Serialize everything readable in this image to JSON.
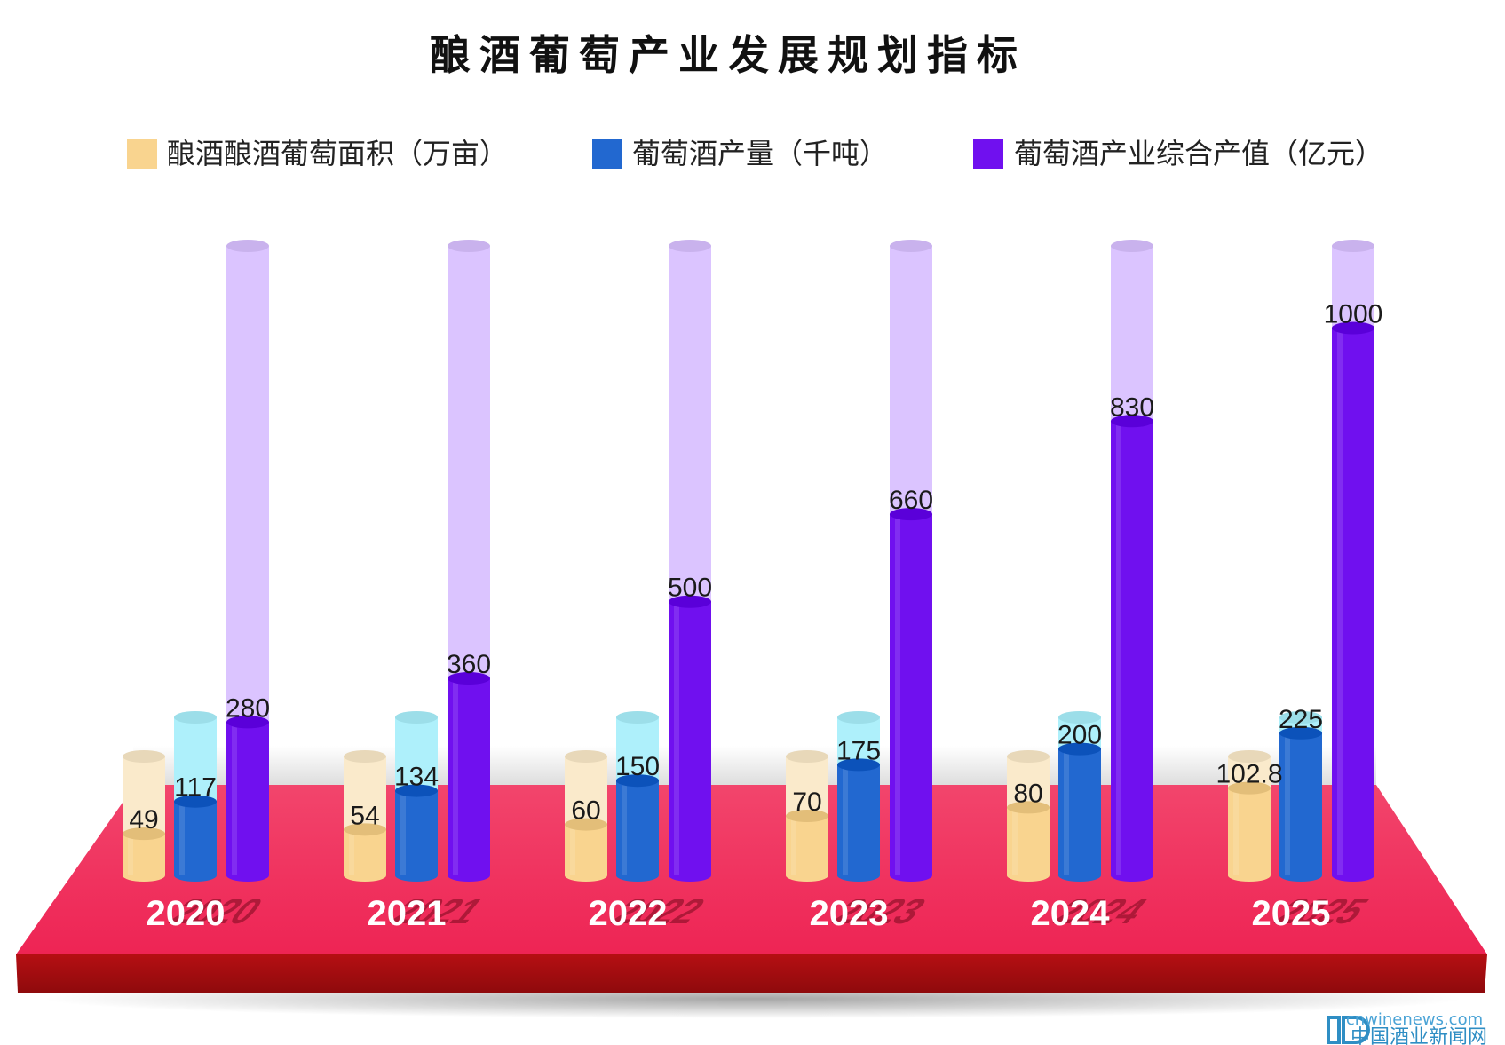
{
  "chart_data": {
    "type": "bar",
    "title": "酿酒葡萄产业发展规划指标",
    "categories": [
      "2020",
      "2021",
      "2022",
      "2023",
      "2024",
      "2025"
    ],
    "series": [
      {
        "name": "酿酒酿酒葡萄面积（万亩）",
        "values": [
          49,
          54,
          60,
          70,
          80,
          102.8
        ],
        "labels": [
          "49",
          "54",
          "60",
          "70",
          "80",
          "102.8"
        ],
        "color": "#f9d48f",
        "track_color": "#faeacb",
        "track_max": 140
      },
      {
        "name": "葡萄酒产量（千吨）",
        "values": [
          117,
          134,
          150,
          175,
          200,
          225
        ],
        "labels": [
          "117",
          "134",
          "150",
          "175",
          "200",
          "225"
        ],
        "color": "#2268d0",
        "track_color": "#aef0fb",
        "track_max": 250
      },
      {
        "name": "葡萄酒产业综合产值（亿元）",
        "values": [
          280,
          360,
          500,
          660,
          830,
          1000
        ],
        "labels": [
          "280",
          "360",
          "500",
          "660",
          "830",
          "1000"
        ],
        "color": "#7010ef",
        "track_color": "#dbc4ff",
        "track_max": 1150
      }
    ],
    "xlabel": "",
    "ylabel": "",
    "legend_position": "top",
    "platform_color": "#f02b59",
    "platform_edge_color": "#a20c0e"
  },
  "watermark": {
    "domain": "cnwinenews.com",
    "name": "中国酒业新闻网"
  }
}
